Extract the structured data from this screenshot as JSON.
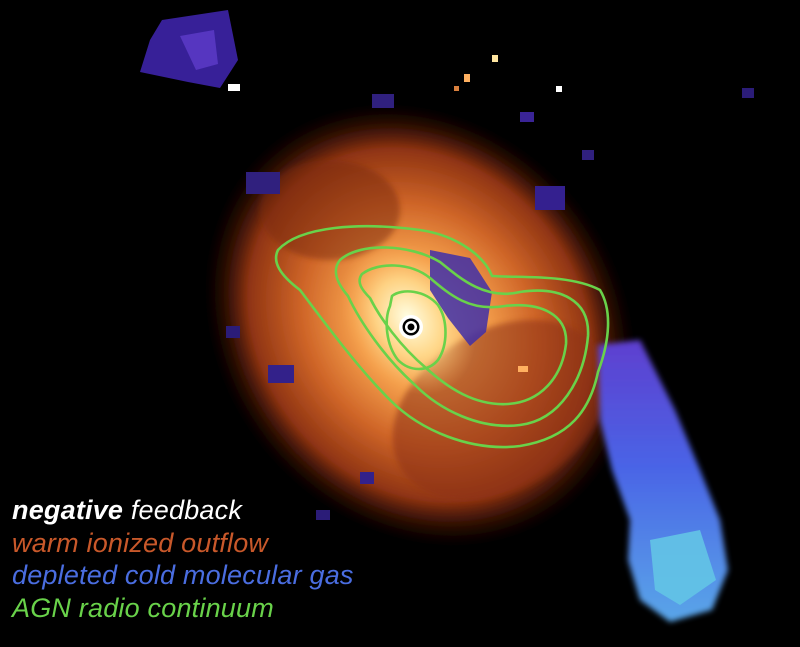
{
  "legend": {
    "title_emphasis": "negative",
    "title_rest": " feedback",
    "lines": [
      "warm ionized outflow",
      "depleted cold molecular gas",
      "AGN radio continuum"
    ]
  },
  "colors": {
    "title": "#ffffff",
    "ionized_outflow": "#c8582a",
    "molecular_gas": "#4a6de0",
    "radio_continuum": "#69d24a",
    "background": "#000000"
  },
  "icons": {
    "nucleus": "agn-nucleus-marker"
  }
}
